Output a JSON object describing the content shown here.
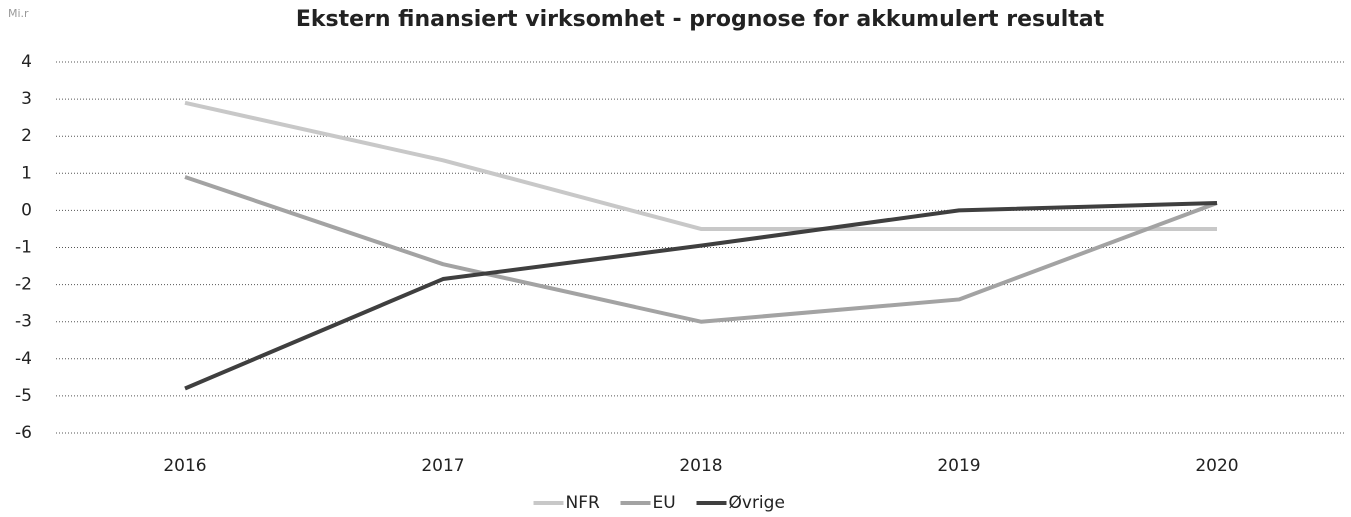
{
  "chart_data": {
    "type": "line",
    "title": "Ekstern finansiert virksomhet - prognose for akkumulert resultat",
    "y_axis_label": "Mi.r",
    "categories": [
      "2016",
      "2017",
      "2018",
      "2019",
      "2020"
    ],
    "series": [
      {
        "name": "NFR",
        "color": "#c8c8c8",
        "values": [
          2.9,
          1.35,
          -0.5,
          -0.5,
          -0.5
        ]
      },
      {
        "name": "EU",
        "color": "#a3a3a3",
        "values": [
          0.9,
          -1.45,
          -3.0,
          -2.4,
          0.2
        ]
      },
      {
        "name": "Øvrige",
        "color": "#3f3f3f",
        "values": [
          -4.8,
          -1.85,
          -0.95,
          0,
          0.2
        ]
      }
    ],
    "ylim": [
      -6,
      4
    ],
    "yticks": [
      -6,
      -5,
      -4,
      -3,
      -2,
      -1,
      0,
      1,
      2,
      3,
      4
    ],
    "grid": true,
    "legend": "bottom"
  }
}
